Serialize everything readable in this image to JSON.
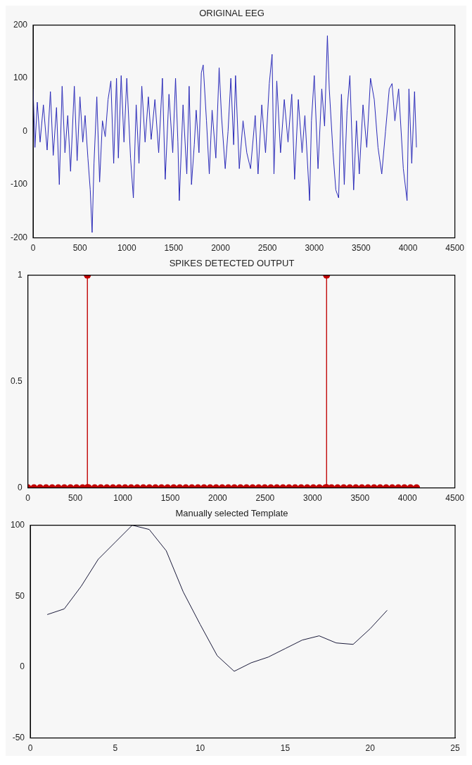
{
  "chart_data": [
    {
      "type": "line",
      "title": "ORIGINAL EEG",
      "xlim": [
        0,
        4500
      ],
      "xticks": [
        0,
        500,
        1000,
        1500,
        2000,
        2500,
        3000,
        3500,
        4000,
        4500
      ],
      "ylim": [
        -200,
        200
      ],
      "yticks": [
        -200,
        -100,
        0,
        100,
        200
      ],
      "grid": false,
      "legend": false,
      "marker": "none",
      "line_style": "solid",
      "series": [
        {
          "color": "#2a2ab8",
          "x": [
            0,
            20,
            45,
            75,
            110,
            150,
            185,
            215,
            250,
            280,
            310,
            340,
            370,
            400,
            440,
            470,
            500,
            530,
            555,
            585,
            610,
            630,
            650,
            680,
            710,
            740,
            770,
            800,
            830,
            860,
            890,
            910,
            940,
            970,
            1000,
            1040,
            1070,
            1100,
            1130,
            1160,
            1195,
            1230,
            1260,
            1300,
            1340,
            1380,
            1410,
            1450,
            1490,
            1520,
            1545,
            1560,
            1600,
            1640,
            1665,
            1690,
            1720,
            1740,
            1770,
            1795,
            1815,
            1850,
            1880,
            1910,
            1950,
            1985,
            2010,
            2050,
            2080,
            2110,
            2140,
            2160,
            2200,
            2240,
            2280,
            2320,
            2370,
            2400,
            2440,
            2480,
            2520,
            2550,
            2570,
            2600,
            2640,
            2680,
            2720,
            2760,
            2790,
            2830,
            2870,
            2900,
            2950,
            2970,
            3000,
            3040,
            3080,
            3110,
            3140,
            3160,
            3200,
            3230,
            3260,
            3290,
            3320,
            3350,
            3380,
            3420,
            3450,
            3480,
            3520,
            3560,
            3600,
            3640,
            3680,
            3720,
            3760,
            3800,
            3830,
            3860,
            3900,
            3950,
            3990,
            4010,
            4040,
            4070,
            4090,
            4096
          ],
          "values": [
            80,
            -30,
            55,
            -20,
            50,
            -35,
            75,
            -45,
            45,
            -100,
            85,
            -40,
            30,
            -75,
            85,
            -55,
            65,
            -20,
            30,
            -50,
            -110,
            -190,
            -60,
            65,
            -95,
            20,
            -10,
            60,
            95,
            -60,
            100,
            -50,
            105,
            -20,
            100,
            -50,
            -125,
            50,
            -60,
            85,
            -20,
            65,
            -15,
            60,
            -40,
            100,
            -90,
            70,
            -40,
            100,
            -20,
            -130,
            50,
            -80,
            85,
            -100,
            -25,
            40,
            -40,
            110,
            125,
            20,
            -80,
            40,
            -50,
            120,
            30,
            -70,
            0,
            100,
            -25,
            105,
            -70,
            20,
            -40,
            -70,
            30,
            -80,
            50,
            -40,
            90,
            145,
            -80,
            95,
            -40,
            60,
            -20,
            70,
            -90,
            60,
            -40,
            30,
            -130,
            20,
            105,
            -70,
            80,
            10,
            180,
            80,
            -40,
            -110,
            -125,
            70,
            -100,
            40,
            105,
            -110,
            20,
            -80,
            50,
            -30,
            100,
            60,
            -30,
            -80,
            0,
            80,
            90,
            20,
            80,
            -70,
            -130,
            80,
            -60,
            75,
            -30,
            -30
          ]
        }
      ]
    },
    {
      "type": "line",
      "title": "SPIKES DETECTED OUTPUT",
      "xlim": [
        0,
        4500
      ],
      "xticks": [
        0,
        500,
        1000,
        1500,
        2000,
        2500,
        3000,
        3500,
        4000,
        4500
      ],
      "ylim": [
        0,
        1
      ],
      "yticks": [
        0,
        0.5,
        1
      ],
      "grid": false,
      "legend": false,
      "marker": "circle",
      "line_style": "solid",
      "series": [
        {
          "color": "#c00000",
          "x": [
            0,
            64,
            128,
            192,
            256,
            320,
            384,
            448,
            512,
            576,
            627,
            627,
            627,
            640,
            704,
            768,
            832,
            896,
            960,
            1024,
            1088,
            1152,
            1216,
            1280,
            1344,
            1408,
            1472,
            1536,
            1600,
            1664,
            1728,
            1792,
            1856,
            1920,
            1984,
            2048,
            2112,
            2176,
            2240,
            2304,
            2368,
            2432,
            2496,
            2560,
            2624,
            2688,
            2752,
            2816,
            2880,
            2944,
            3008,
            3072,
            3136,
            3148,
            3148,
            3148,
            3200,
            3264,
            3328,
            3392,
            3456,
            3520,
            3584,
            3648,
            3712,
            3776,
            3840,
            3904,
            3968,
            4032,
            4096
          ],
          "values": [
            0,
            0,
            0,
            0,
            0,
            0,
            0,
            0,
            0,
            0,
            0,
            1,
            0,
            0,
            0,
            0,
            0,
            0,
            0,
            0,
            0,
            0,
            0,
            0,
            0,
            0,
            0,
            0,
            0,
            0,
            0,
            0,
            0,
            0,
            0,
            0,
            0,
            0,
            0,
            0,
            0,
            0,
            0,
            0,
            0,
            0,
            0,
            0,
            0,
            0,
            0,
            0,
            0,
            0,
            1,
            0,
            0,
            0,
            0,
            0,
            0,
            0,
            0,
            0,
            0,
            0,
            0,
            0,
            0,
            0,
            0
          ]
        }
      ]
    },
    {
      "type": "line",
      "title": "Manually selected Template",
      "xlim": [
        0,
        25
      ],
      "xticks": [
        0,
        5,
        10,
        15,
        20,
        25
      ],
      "ylim": [
        -50,
        100
      ],
      "yticks": [
        -50,
        0,
        50,
        100
      ],
      "grid": false,
      "legend": false,
      "marker": "none",
      "line_style": "solid",
      "series": [
        {
          "color": "#1a1a3a",
          "x": [
            1,
            2,
            3,
            4,
            5,
            6,
            7,
            8,
            9,
            10,
            11,
            12,
            13,
            14,
            15,
            16,
            17,
            18,
            19,
            20,
            21
          ],
          "values": [
            37,
            41,
            57,
            76,
            88,
            100,
            97,
            82,
            53,
            30,
            8,
            -3,
            3,
            7,
            13,
            19,
            22,
            17,
            16,
            27,
            40
          ]
        }
      ]
    }
  ]
}
